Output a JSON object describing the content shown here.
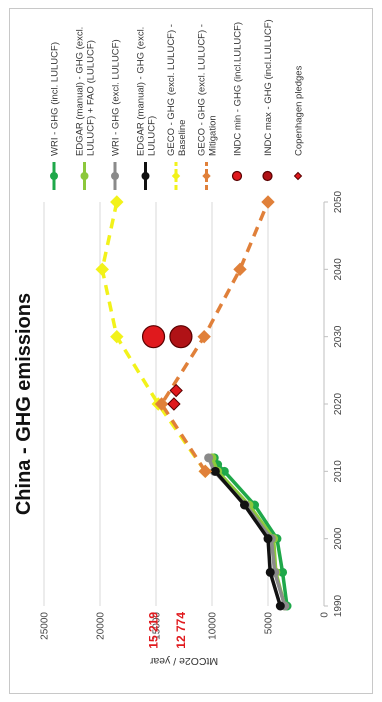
{
  "chart_data": {
    "type": "line",
    "title": "China - GHG emissions",
    "ylabel": "MtCO2e / year",
    "xlim": [
      1990,
      2050
    ],
    "ylim": [
      0,
      25000
    ],
    "xticks": [
      1990,
      2000,
      2010,
      2020,
      2030,
      2040,
      2050
    ],
    "yticks": [
      0,
      5000,
      10000,
      15000,
      20000,
      25000
    ],
    "highlight_labels": [
      {
        "text": "15 219",
        "value": 15219
      },
      {
        "text": "12 774",
        "value": 12774
      }
    ],
    "legend_position": "right",
    "series": [
      {
        "name": "WRI - GHG (incl. LULUCF)",
        "color": "#1fa84a",
        "marker": "circle",
        "dash": "solid",
        "x": [
          1990,
          1995,
          2000,
          2005,
          2010,
          2011,
          2012
        ],
        "y": [
          3300,
          3700,
          4200,
          6200,
          8900,
          9500,
          9800
        ]
      },
      {
        "name": "EDGAR (manual) - GHG (excl. LULUCF) + FAO (LULUCF)",
        "color": "#8cc83c",
        "marker": "circle",
        "dash": "solid",
        "x": [
          1990,
          1995,
          2000,
          2005,
          2010,
          2012
        ],
        "y": [
          3500,
          4300,
          4500,
          6700,
          9500,
          10000
        ]
      },
      {
        "name": "WRI - GHG (excl. LULUCF)",
        "color": "#8a8a8a",
        "marker": "circle",
        "dash": "solid",
        "x": [
          1990,
          1995,
          2000,
          2005,
          2010,
          2012
        ],
        "y": [
          3500,
          4400,
          4700,
          7000,
          9800,
          10300
        ]
      },
      {
        "name": "EDGAR (manual) - GHG (excl. LULUCF)",
        "color": "#111111",
        "marker": "circle",
        "dash": "solid",
        "x": [
          1990,
          1995,
          2000,
          2005,
          2010
        ],
        "y": [
          3900,
          4800,
          5000,
          7100,
          9700
        ]
      },
      {
        "name": "GECO - GHG (excl. LULUCF) - Baseline",
        "color": "#f2f21a",
        "marker": "diamond",
        "dash": "dashed",
        "x": [
          2010,
          2020,
          2030,
          2040,
          2050
        ],
        "y": [
          10600,
          14800,
          18500,
          19800,
          18500
        ]
      },
      {
        "name": "GECO - GHG (excl. LULUCF) - Mitigation",
        "color": "#e0803a",
        "marker": "diamond",
        "dash": "dashed",
        "x": [
          2010,
          2020,
          2030,
          2040,
          2050
        ],
        "y": [
          10600,
          14500,
          10700,
          7500,
          5000
        ]
      },
      {
        "name": "INDC min - GHG (incl.LULUCF)",
        "color": "#e0191d",
        "marker": "bigcircle",
        "dash": "none",
        "x": [
          2030
        ],
        "y": [
          15219
        ]
      },
      {
        "name": "INDC max - GHG (incl.LULUCF)",
        "color": "#b01216",
        "marker": "bigcircle",
        "dash": "none",
        "x": [
          2030
        ],
        "y": [
          12774
        ]
      },
      {
        "name": "Copenhagen pledges",
        "color": "#e0191d",
        "marker": "diamond",
        "dash": "none",
        "x": [
          2020,
          2022
        ],
        "y": [
          13400,
          13200
        ]
      }
    ]
  }
}
